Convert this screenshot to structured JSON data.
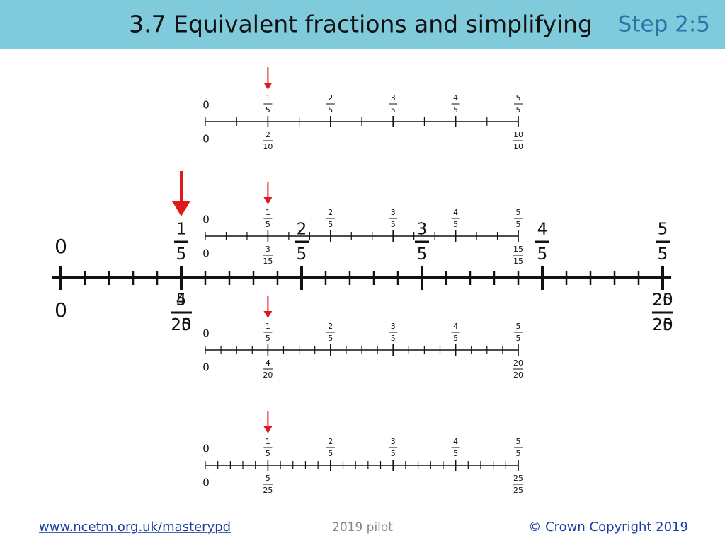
{
  "header": {
    "title": "3.7 Equivalent fractions and simplifying",
    "step": "Step 2:5"
  },
  "number_lines": [
    {
      "top_zero": 0,
      "top_labels": [
        {
          "num": 1,
          "den": 5
        },
        {
          "num": 2,
          "den": 5
        },
        {
          "num": 3,
          "den": 5
        },
        {
          "num": 4,
          "den": 5
        },
        {
          "num": 5,
          "den": 5
        }
      ],
      "bottom_zero": 0,
      "bottom_labels": [
        {
          "num": 2,
          "den": 10
        },
        {
          "num": 10,
          "den": 10
        }
      ]
    },
    {
      "top_zero": 0,
      "top_labels": [
        {
          "num": 1,
          "den": 5
        },
        {
          "num": 2,
          "den": 5
        },
        {
          "num": 3,
          "den": 5
        },
        {
          "num": 4,
          "den": 5
        },
        {
          "num": 5,
          "den": 5
        }
      ],
      "bottom_zero": 0,
      "bottom_labels": [
        {
          "num": 3,
          "den": 15
        },
        {
          "num": 15,
          "den": 15
        }
      ]
    },
    {
      "top_zero": 0,
      "top_labels": [
        {
          "num": 1,
          "den": 5
        },
        {
          "num": 2,
          "den": 5
        },
        {
          "num": 3,
          "den": 5
        },
        {
          "num": 4,
          "den": 5
        },
        {
          "num": 5,
          "den": 5
        }
      ],
      "bottom_zero": 0,
      "bottom_labels": [
        {
          "num": 4,
          "den": 20
        },
        {
          "num": 20,
          "den": 20
        }
      ]
    },
    {
      "top_zero": 0,
      "top_labels": [
        {
          "num": 1,
          "den": 5
        },
        {
          "num": 2,
          "den": 5
        },
        {
          "num": 3,
          "den": 5
        },
        {
          "num": 4,
          "den": 5
        },
        {
          "num": 5,
          "den": 5
        }
      ],
      "bottom_zero": 0,
      "bottom_labels": [
        {
          "num": 5,
          "den": 25
        },
        {
          "num": 25,
          "den": 25
        }
      ]
    }
  ],
  "big_line": {
    "top_zero": 0,
    "top_labels": [
      {
        "num": 1,
        "den": 5
      },
      {
        "num": 2,
        "den": 5
      },
      {
        "num": 3,
        "den": 5
      },
      {
        "num": 4,
        "den": 5
      },
      {
        "num": 5,
        "den": 5
      }
    ],
    "bottom_zero": 0,
    "bottom_labels": [
      [
        {
          "num": 4,
          "den": 20
        },
        {
          "num": 20,
          "den": 20
        }
      ],
      [
        {
          "num": 5,
          "den": 25
        },
        {
          "num": 25,
          "den": 25
        }
      ]
    ]
  },
  "footer": {
    "link": "www.ncetm.org.uk/masterypd",
    "center": "2019 pilot",
    "copyright": "© Crown Copyright 2019"
  }
}
